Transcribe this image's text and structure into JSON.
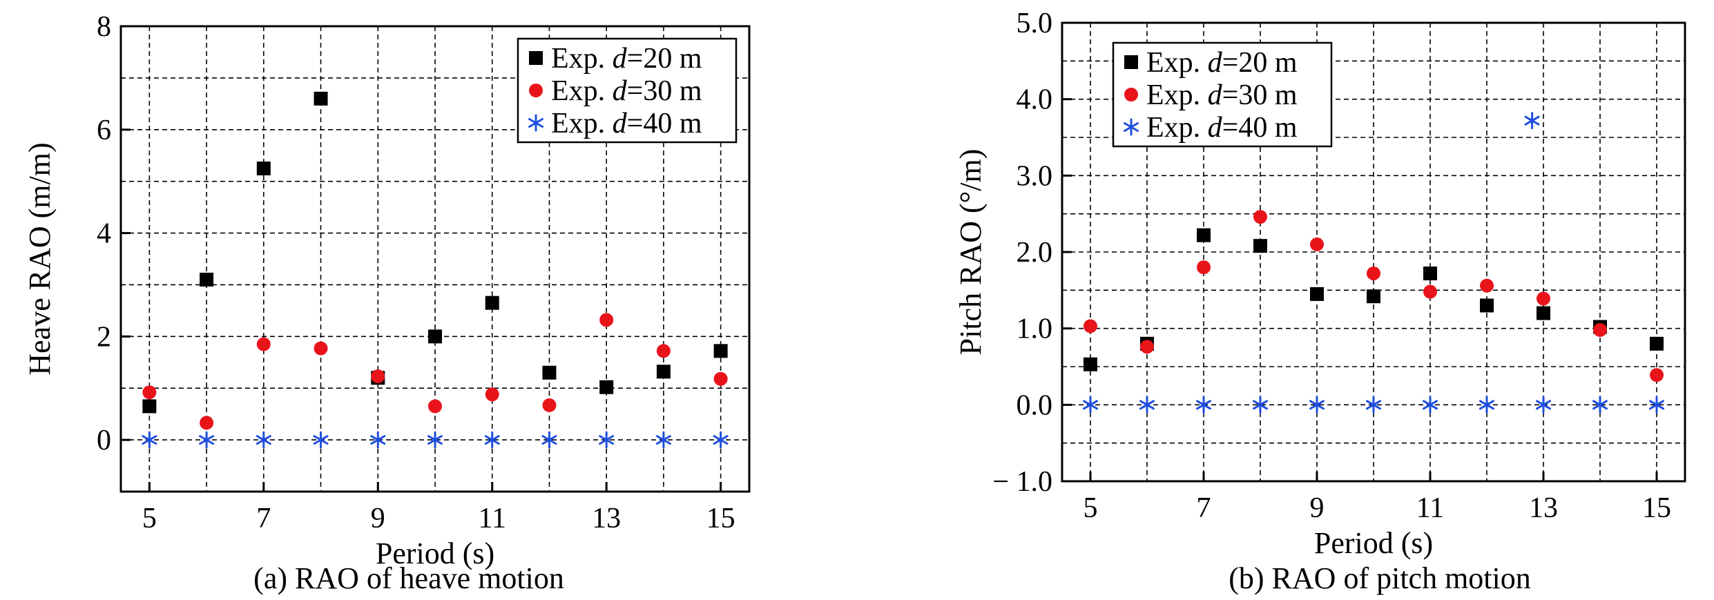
{
  "chart_data": [
    {
      "type": "scatter",
      "caption": "(a) RAO of heave motion",
      "xlabel": "Period (s)",
      "ylabel": "Heave RAO (m/m)",
      "xlim": [
        4.5,
        15.5
      ],
      "ylim": [
        -1,
        8
      ],
      "xticks": [
        5,
        7,
        9,
        11,
        13,
        15
      ],
      "xtick_labels": [
        "5",
        "7",
        "9",
        "11",
        "13",
        "15"
      ],
      "yticks": [
        0,
        2,
        4,
        6,
        8
      ],
      "ytick_labels": [
        "0",
        "2",
        "4",
        "6",
        "8"
      ],
      "grid_x": [
        5,
        6,
        7,
        8,
        9,
        10,
        11,
        12,
        13,
        14,
        15
      ],
      "grid_y": [
        0,
        1,
        2,
        3,
        4,
        5,
        6,
        7
      ],
      "grid": "dashed",
      "legend_position": "top-right",
      "series": [
        {
          "name_prefix": "Exp. ",
          "name_var": "d",
          "name_suffix": "=20 m",
          "marker": "square",
          "color": "#000000",
          "x": [
            5,
            6,
            7,
            8,
            9,
            10,
            11,
            12,
            13,
            14,
            15
          ],
          "y": [
            0.65,
            3.1,
            5.25,
            6.6,
            1.2,
            2.0,
            2.65,
            1.3,
            1.02,
            1.32,
            1.72
          ]
        },
        {
          "name_prefix": "Exp. ",
          "name_var": "d",
          "name_suffix": "=30 m",
          "marker": "circle",
          "color": "#e8141a",
          "x": [
            5,
            6,
            7,
            8,
            9,
            10,
            11,
            12,
            13,
            14,
            15
          ],
          "y": [
            0.92,
            0.33,
            1.85,
            1.77,
            1.23,
            0.65,
            0.88,
            0.67,
            2.32,
            1.72,
            1.18
          ]
        },
        {
          "name_prefix": "Exp. ",
          "name_var": "d",
          "name_suffix": "=40 m",
          "marker": "asterisk",
          "color": "#1f4fe0",
          "x": [
            5,
            6,
            7,
            8,
            9,
            10,
            11,
            12,
            13,
            14,
            15
          ],
          "y": [
            0,
            0,
            0,
            0,
            0,
            0,
            0,
            0,
            0,
            0,
            0
          ]
        }
      ]
    },
    {
      "type": "scatter",
      "caption": "(b) RAO of pitch motion",
      "xlabel": "Period (s)",
      "ylabel": "Pitch RAO (°/m)",
      "xlim": [
        4.5,
        15.5
      ],
      "ylim": [
        -1,
        5
      ],
      "xticks": [
        5,
        7,
        9,
        11,
        13,
        15
      ],
      "xtick_labels": [
        "5",
        "7",
        "9",
        "11",
        "13",
        "15"
      ],
      "yticks": [
        -1,
        0,
        1,
        2,
        3,
        4,
        5
      ],
      "ytick_labels": [
        "− 1.0",
        "0.0",
        "1.0",
        "2.0",
        "3.0",
        "4.0",
        "5.0"
      ],
      "grid_x": [
        5,
        6,
        7,
        8,
        9,
        10,
        11,
        12,
        13,
        14,
        15
      ],
      "grid_y": [
        -0.5,
        0,
        0.5,
        1,
        1.5,
        2,
        2.5,
        3,
        3.5,
        4,
        4.5
      ],
      "grid": "dashed",
      "legend_position": "top-left",
      "series": [
        {
          "name_prefix": "Exp. ",
          "name_var": "d",
          "name_suffix": "=20 m",
          "marker": "square",
          "color": "#000000",
          "x": [
            5,
            6,
            7,
            8,
            9,
            10,
            11,
            12,
            13,
            14,
            15
          ],
          "y": [
            0.53,
            0.8,
            2.22,
            2.08,
            1.45,
            1.42,
            1.72,
            1.3,
            1.2,
            1.02,
            0.8
          ]
        },
        {
          "name_prefix": "Exp. ",
          "name_var": "d",
          "name_suffix": "=30 m",
          "marker": "circle",
          "color": "#e8141a",
          "x": [
            5,
            6,
            7,
            8,
            9,
            10,
            11,
            12,
            13,
            14,
            15
          ],
          "y": [
            1.03,
            0.76,
            1.8,
            2.46,
            2.1,
            1.72,
            1.48,
            1.56,
            1.39,
            0.98,
            0.39
          ]
        },
        {
          "name_prefix": "Exp. ",
          "name_var": "d",
          "name_suffix": "=40 m",
          "marker": "asterisk",
          "color": "#1f4fe0",
          "x": [
            5,
            6,
            7,
            8,
            9,
            10,
            11,
            12,
            12.8,
            13,
            14,
            15
          ],
          "y": [
            0,
            0,
            0,
            0,
            0,
            0,
            0,
            0,
            3.72,
            0,
            0,
            0
          ]
        }
      ]
    }
  ]
}
